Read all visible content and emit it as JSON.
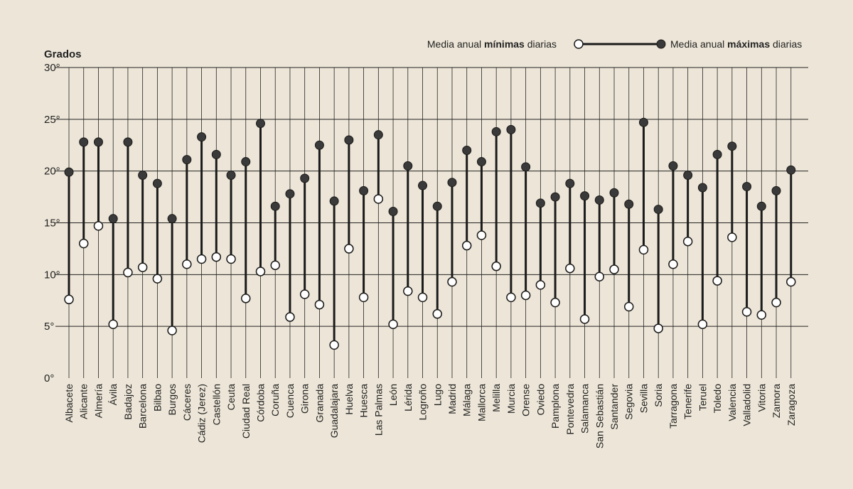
{
  "chart_data": {
    "type": "dumbbell",
    "unit_label": "Grados",
    "y_ticks": [
      "0°",
      "5°",
      "10°",
      "15°",
      "20°",
      "25°",
      "30°"
    ],
    "ylim": [
      0,
      30
    ],
    "legend": {
      "min_prefix": "Media anual ",
      "min_bold": "mínimas",
      "min_suffix": " diarias",
      "max_prefix": "Media anual ",
      "max_bold": "máximas",
      "max_suffix": " diarias"
    },
    "colors": {
      "background": "#ede6d8",
      "max_marker": "#3a3a3a",
      "min_marker": "#ffffff",
      "line": "#1a1a1a",
      "grid": "#222222"
    },
    "categories": [
      "Albacete",
      "Alicante",
      "Almería",
      "Ávila",
      "Badajoz",
      "Barcelona",
      "Bilbao",
      "Burgos",
      "Cáceres",
      "Cádiz (Jerez)",
      "Castellón",
      "Ceuta",
      "Ciudad Real",
      "Córdoba",
      "Coruña",
      "Cuenca",
      "Girona",
      "Granada",
      "Guadalajara",
      "Huelva",
      "Huesca",
      "Las Palmas",
      "León",
      "Lérida",
      "Logroño",
      "Lugo",
      "Madrid",
      "Málaga",
      "Mallorca",
      "Melilla",
      "Murcia",
      "Orense",
      "Oviedo",
      "Pamplona",
      "Pontevedra",
      "Salamanca",
      "San Sebastián",
      "Santander",
      "Segovia",
      "Sevilla",
      "Soria",
      "Tarragona",
      "Tenerife",
      "Teruel",
      "Toledo",
      "Valencia",
      "Valladolid",
      "Vitoria",
      "Zamora",
      "Zaragoza"
    ],
    "series": [
      {
        "name": "Media anual mínimas diarias",
        "values": [
          7.6,
          13.0,
          14.7,
          5.2,
          10.2,
          10.7,
          9.6,
          4.6,
          11.0,
          11.5,
          11.7,
          11.5,
          7.7,
          10.3,
          10.9,
          5.9,
          8.1,
          7.1,
          3.2,
          12.5,
          7.8,
          17.3,
          5.2,
          8.4,
          7.8,
          6.2,
          9.3,
          12.8,
          13.8,
          10.8,
          7.8,
          8.0,
          9.0,
          7.3,
          10.6,
          5.7,
          9.8,
          10.5,
          6.9,
          12.4,
          4.8,
          11.0,
          13.2,
          5.2,
          9.4,
          13.6,
          6.4,
          6.1,
          7.3,
          9.3
        ]
      },
      {
        "name": "Media anual máximas diarias",
        "values": [
          19.9,
          22.8,
          22.8,
          15.4,
          22.8,
          19.6,
          18.8,
          15.4,
          21.1,
          23.3,
          21.6,
          19.6,
          20.9,
          24.6,
          16.6,
          17.8,
          19.3,
          22.5,
          17.1,
          23.0,
          18.1,
          23.5,
          16.1,
          20.5,
          18.6,
          16.6,
          18.9,
          22.0,
          20.9,
          23.8,
          24.0,
          20.4,
          16.9,
          17.5,
          18.8,
          17.6,
          17.2,
          17.9,
          16.8,
          24.7,
          16.3,
          20.5,
          19.6,
          18.4,
          21.6,
          22.4,
          18.5,
          16.6,
          18.1,
          20.1
        ]
      }
    ]
  }
}
